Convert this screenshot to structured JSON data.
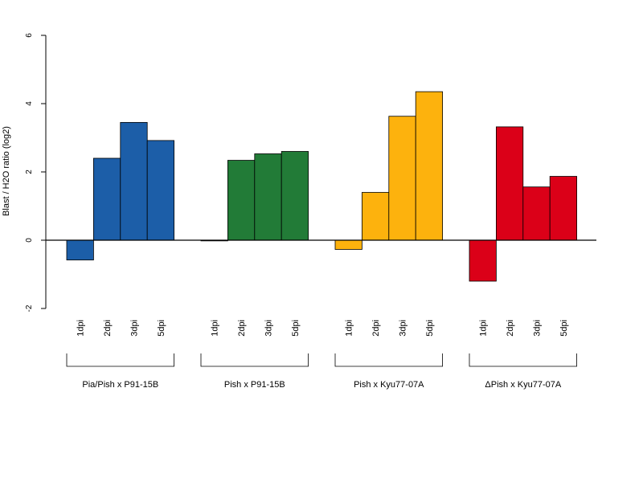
{
  "chart_data": {
    "type": "bar",
    "ylabel": "Blast / H2O ratio (log2)",
    "ylim": [
      -2,
      6
    ],
    "yticks": [
      -2,
      0,
      2,
      4,
      6
    ],
    "categories": [
      "1dpi",
      "2dpi",
      "3dpi",
      "5dpi"
    ],
    "series": [
      {
        "name": "Pia/Pish x P91-15B",
        "color": "#1c5ea8",
        "values": [
          -0.58,
          2.4,
          3.45,
          2.92
        ]
      },
      {
        "name": "Pish x P91-15B",
        "color": "#227b37",
        "values": [
          -0.02,
          2.34,
          2.53,
          2.6
        ]
      },
      {
        "name": "Pish x Kyu77-07A",
        "color": "#fdb20d",
        "values": [
          -0.27,
          1.4,
          3.63,
          4.35
        ]
      },
      {
        "name": "ΔPish x Kyu77-07A",
        "color": "#db0018",
        "values": [
          -1.2,
          3.32,
          1.56,
          1.87
        ]
      }
    ],
    "grid": false,
    "legend": "none"
  }
}
